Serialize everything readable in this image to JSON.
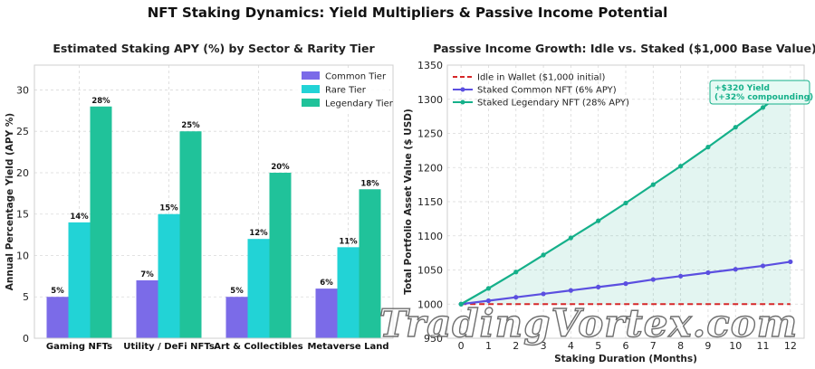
{
  "suptitle": "NFT Staking Dynamics: Yield Multipliers & Passive Income Potential",
  "watermark": "TradingVortex.com",
  "chart_data": [
    {
      "type": "bar",
      "title": "Estimated Staking APY (%) by Sector & Rarity Tier",
      "xlabel": "",
      "ylabel": "Annual Percentage Yield (APY %)",
      "ylim": [
        0,
        33
      ],
      "yticks": [
        0,
        5,
        10,
        15,
        20,
        25,
        30
      ],
      "categories": [
        "Gaming NFTs",
        "Utility / DeFi NFTs",
        "Art & Collectibles",
        "Metaverse Land"
      ],
      "series": [
        {
          "name": "Common Tier",
          "values": [
            5,
            7,
            5,
            6
          ],
          "labels": [
            "5%",
            "7%",
            "5%",
            "6%"
          ],
          "color": "#7b6be8"
        },
        {
          "name": "Rare Tier",
          "values": [
            14,
            15,
            12,
            11
          ],
          "labels": [
            "14%",
            "15%",
            "12%",
            "11%"
          ],
          "color": "#22d3d6"
        },
        {
          "name": "Legendary Tier",
          "values": [
            28,
            25,
            20,
            18
          ],
          "labels": [
            "28%",
            "25%",
            "20%",
            "18%"
          ],
          "color": "#20c29a"
        }
      ],
      "legend": "top-right",
      "grid": true
    },
    {
      "type": "line",
      "title": "Passive Income Growth: Idle vs. Staked ($1,000 Base Value)",
      "xlabel": "Staking Duration (Months)",
      "ylabel": "Total Portfolio Asset Value ($ USD)",
      "xlim": [
        -0.5,
        12.5
      ],
      "ylim": [
        950,
        1350
      ],
      "xticks": [
        0,
        1,
        2,
        3,
        4,
        5,
        6,
        7,
        8,
        9,
        10,
        11,
        12
      ],
      "yticks": [
        950,
        1000,
        1050,
        1100,
        1150,
        1200,
        1250,
        1300,
        1350
      ],
      "x": [
        0,
        1,
        2,
        3,
        4,
        5,
        6,
        7,
        8,
        9,
        10,
        11,
        12
      ],
      "series": [
        {
          "name": "Idle in Wallet ($1,000 initial)",
          "color": "#d62728",
          "style": "dashed",
          "values": [
            1000,
            1000,
            1000,
            1000,
            1000,
            1000,
            1000,
            1000,
            1000,
            1000,
            1000,
            1000,
            1000
          ]
        },
        {
          "name": "Staked Common NFT (6% APY)",
          "color": "#5b4fe0",
          "style": "solid-markers",
          "values": [
            1000,
            1005,
            1010,
            1015,
            1020,
            1025,
            1030,
            1036,
            1041,
            1046,
            1051,
            1056,
            1062
          ]
        },
        {
          "name": "Staked Legendary NFT (28% APY)",
          "color": "#15b08a",
          "style": "solid-markers",
          "values": [
            1000,
            1023,
            1047,
            1072,
            1097,
            1122,
            1148,
            1175,
            1202,
            1230,
            1259,
            1288,
            1318
          ]
        }
      ],
      "annotation": {
        "lines": [
          "+$320 Yield",
          "(+32% compounding)"
        ],
        "color": "#15b08a"
      },
      "legend": "top-left",
      "grid": true
    }
  ]
}
